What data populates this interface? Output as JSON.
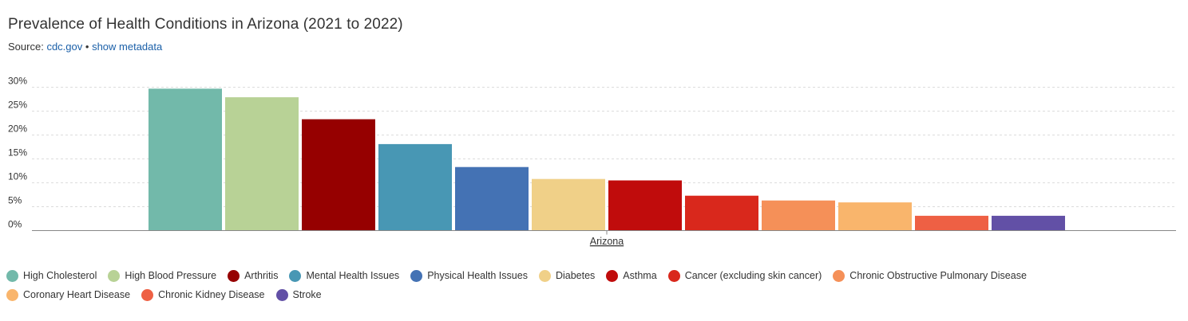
{
  "header": {
    "title": "Prevalence of Health Conditions in Arizona (2021 to 2022)",
    "source_prefix": "Source:",
    "source_link": "cdc.gov",
    "separator": "•",
    "metadata_link": "show metadata"
  },
  "chart_data": {
    "type": "bar",
    "categories": [
      "Arizona"
    ],
    "ylim": [
      0,
      30
    ],
    "yticks": [
      "0%",
      "5%",
      "10%",
      "15%",
      "20%",
      "25%",
      "30%"
    ],
    "ytick_values": [
      0,
      5,
      10,
      15,
      20,
      25,
      30
    ],
    "grid": true,
    "legend_position": "bottom",
    "series": [
      {
        "name": "High Cholesterol",
        "values": [
          29.7
        ],
        "color": "#72b9aa"
      },
      {
        "name": "High Blood Pressure",
        "values": [
          27.9
        ],
        "color": "#b8d296"
      },
      {
        "name": "Arthritis",
        "values": [
          23.3
        ],
        "color": "#960000"
      },
      {
        "name": "Mental Health Issues",
        "values": [
          18.1
        ],
        "color": "#4897b4"
      },
      {
        "name": "Physical Health Issues",
        "values": [
          13.3
        ],
        "color": "#4472b4"
      },
      {
        "name": "Diabetes",
        "values": [
          10.8
        ],
        "color": "#f0d088"
      },
      {
        "name": "Asthma",
        "values": [
          10.5
        ],
        "color": "#c00c0c"
      },
      {
        "name": "Cancer (excluding skin cancer)",
        "values": [
          7.3
        ],
        "color": "#d9281c"
      },
      {
        "name": "Chronic Obstructive Pulmonary Disease",
        "values": [
          6.3
        ],
        "color": "#f59058"
      },
      {
        "name": "Coronary Heart Disease",
        "values": [
          5.9
        ],
        "color": "#f9b56c"
      },
      {
        "name": "Chronic Kidney Disease",
        "values": [
          3.1
        ],
        "color": "#ee6044"
      },
      {
        "name": "Stroke",
        "values": [
          3.1
        ],
        "color": "#6250a6"
      }
    ]
  }
}
